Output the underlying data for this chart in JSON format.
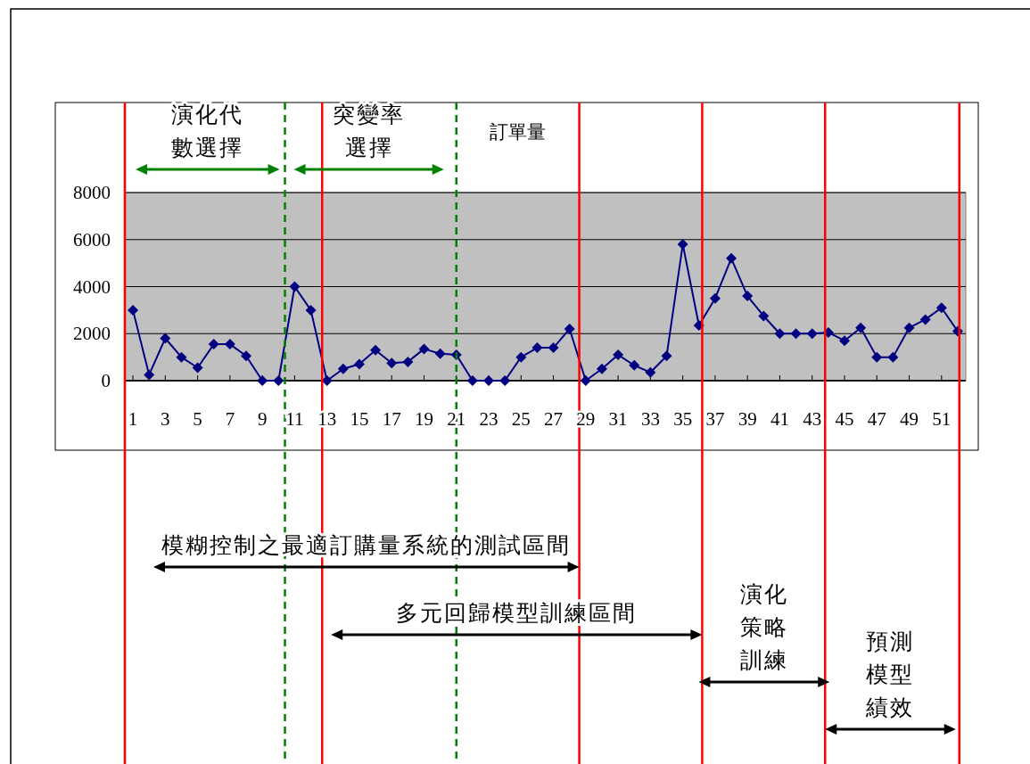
{
  "chart_data": {
    "type": "line",
    "title": "訂單量",
    "x": [
      1,
      2,
      3,
      4,
      5,
      6,
      7,
      8,
      9,
      10,
      11,
      12,
      13,
      14,
      15,
      16,
      17,
      18,
      19,
      20,
      21,
      22,
      23,
      24,
      25,
      26,
      27,
      28,
      29,
      30,
      31,
      32,
      33,
      34,
      35,
      36,
      37,
      38,
      39,
      40,
      41,
      42,
      43,
      44,
      45,
      46,
      47,
      48,
      49,
      50,
      51,
      52
    ],
    "xlim": [
      0.5,
      52.5
    ],
    "xticks": [
      1,
      3,
      5,
      7,
      9,
      11,
      13,
      15,
      17,
      19,
      21,
      23,
      25,
      27,
      29,
      31,
      33,
      35,
      37,
      39,
      41,
      43,
      45,
      47,
      49,
      51
    ],
    "ylim": [
      0,
      8000
    ],
    "yticks": [
      0,
      2000,
      4000,
      6000,
      8000
    ],
    "grid": "y",
    "marker": "diamond",
    "series": [
      {
        "color": "#000080",
        "values": [
          3000,
          250,
          1800,
          1000,
          550,
          1550,
          1550,
          1050,
          0,
          0,
          4000,
          3000,
          0,
          500,
          700,
          1300,
          750,
          800,
          1350,
          1150,
          1100,
          0,
          0,
          0,
          1000,
          1400,
          1400,
          2200,
          0,
          500,
          1100,
          650,
          350,
          1050,
          5800,
          2350,
          3500,
          5200,
          3600,
          2750,
          2000,
          2000,
          2000,
          2050,
          1700,
          2250,
          1000,
          1000,
          2250,
          2600,
          3100,
          2100
        ]
      }
    ],
    "ref_lines": [
      {
        "axis": "x",
        "value": 0.5,
        "color": "#ff0000",
        "line_style": "solid"
      },
      {
        "axis": "x",
        "value": 12.7,
        "color": "#ff0000",
        "line_style": "solid"
      },
      {
        "axis": "x",
        "value": 28.6,
        "color": "#ff0000",
        "line_style": "solid"
      },
      {
        "axis": "x",
        "value": 36.2,
        "color": "#ff0000",
        "line_style": "solid"
      },
      {
        "axis": "x",
        "value": 43.8,
        "color": "#ff0000",
        "line_style": "solid"
      },
      {
        "axis": "x",
        "value": 52.1,
        "color": "#ff0000",
        "line_style": "solid"
      },
      {
        "axis": "x",
        "value": 10.4,
        "color": "#008000",
        "line_style": "dashed"
      },
      {
        "axis": "x",
        "value": 21,
        "color": "#008000",
        "line_style": "dashed"
      }
    ],
    "annotations": [
      "演化代數選擇",
      "突變率選擇",
      "模糊控制之最適訂購量系統的測試區間",
      "多元回歸模型訓練區間",
      "演化策略訓練",
      "預測模型績效"
    ]
  }
}
